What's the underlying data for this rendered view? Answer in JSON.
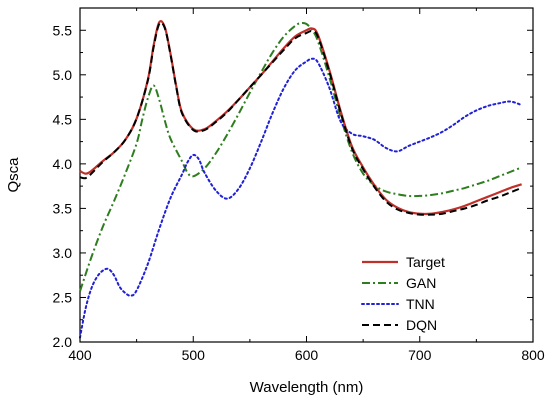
{
  "chart_data": {
    "type": "line",
    "title": "",
    "xlabel": "Wavelength (nm)",
    "ylabel": "Qsca",
    "xlim": [
      400,
      800
    ],
    "ylim": [
      2.0,
      5.75
    ],
    "xticks": [
      400,
      500,
      600,
      700,
      800
    ],
    "xtick_labels": [
      "400",
      "500",
      "600",
      "700",
      "800"
    ],
    "yticks": [
      2.0,
      2.5,
      3.0,
      3.5,
      4.0,
      4.5,
      5.0,
      5.5
    ],
    "ytick_labels": [
      "2.0",
      "2.5",
      "3.0",
      "3.5",
      "4.0",
      "4.5",
      "5.0",
      "5.5"
    ],
    "grid": false,
    "legend_position": "bottom-right",
    "series": [
      {
        "name": "Target",
        "color": "#c0302a",
        "dash": "solid",
        "x": [
          400,
          405,
          410,
          420,
          430,
          440,
          450,
          460,
          465,
          470,
          475,
          480,
          485,
          490,
          500,
          510,
          520,
          530,
          540,
          550,
          560,
          570,
          580,
          590,
          600,
          605,
          610,
          620,
          630,
          640,
          650,
          660,
          670,
          680,
          690,
          700,
          710,
          720,
          730,
          740,
          750,
          760,
          770,
          780,
          790
        ],
        "y": [
          3.92,
          3.89,
          3.92,
          4.03,
          4.13,
          4.27,
          4.51,
          4.95,
          5.33,
          5.59,
          5.53,
          5.23,
          4.87,
          4.58,
          4.39,
          4.39,
          4.48,
          4.59,
          4.72,
          4.86,
          5.0,
          5.15,
          5.3,
          5.43,
          5.5,
          5.52,
          5.45,
          5.06,
          4.6,
          4.2,
          3.96,
          3.76,
          3.6,
          3.51,
          3.46,
          3.44,
          3.44,
          3.46,
          3.49,
          3.53,
          3.58,
          3.63,
          3.68,
          3.73,
          3.77
        ]
      },
      {
        "name": "GAN",
        "color": "#2e7d1f",
        "dash": "dashdot",
        "x": [
          400,
          410,
          420,
          430,
          440,
          450,
          455,
          460,
          465,
          470,
          475,
          480,
          490,
          495,
          500,
          510,
          520,
          530,
          540,
          550,
          560,
          570,
          580,
          590,
          595,
          600,
          605,
          610,
          620,
          630,
          640,
          650,
          660,
          670,
          680,
          690,
          700,
          710,
          720,
          730,
          740,
          750,
          760,
          770,
          780,
          790
        ],
        "y": [
          2.57,
          2.95,
          3.29,
          3.58,
          3.89,
          4.23,
          4.5,
          4.74,
          4.88,
          4.72,
          4.48,
          4.28,
          4.03,
          3.9,
          3.86,
          3.95,
          4.12,
          4.33,
          4.56,
          4.8,
          5.03,
          5.25,
          5.43,
          5.55,
          5.58,
          5.57,
          5.5,
          5.38,
          4.98,
          4.53,
          4.14,
          3.89,
          3.76,
          3.69,
          3.66,
          3.64,
          3.64,
          3.65,
          3.67,
          3.7,
          3.73,
          3.77,
          3.81,
          3.86,
          3.91,
          3.96
        ]
      },
      {
        "name": "TNN",
        "color": "#2020d8",
        "dash": "dotted",
        "x": [
          400,
          405,
          410,
          415,
          420,
          425,
          430,
          435,
          440,
          445,
          450,
          460,
          470,
          480,
          490,
          495,
          500,
          505,
          510,
          520,
          530,
          540,
          550,
          560,
          570,
          580,
          590,
          600,
          605,
          610,
          620,
          630,
          640,
          650,
          660,
          670,
          680,
          690,
          700,
          710,
          720,
          730,
          740,
          750,
          760,
          770,
          780,
          790
        ],
        "y": [
          2.05,
          2.38,
          2.6,
          2.73,
          2.8,
          2.82,
          2.75,
          2.62,
          2.55,
          2.52,
          2.58,
          2.88,
          3.27,
          3.62,
          3.88,
          4.02,
          4.1,
          4.05,
          3.9,
          3.7,
          3.61,
          3.72,
          3.95,
          4.25,
          4.57,
          4.85,
          5.05,
          5.15,
          5.18,
          5.14,
          4.86,
          4.48,
          4.34,
          4.31,
          4.27,
          4.18,
          4.14,
          4.2,
          4.25,
          4.3,
          4.36,
          4.44,
          4.53,
          4.6,
          4.65,
          4.68,
          4.7,
          4.66
        ]
      },
      {
        "name": "DQN",
        "color": "#000000",
        "dash": "dashed",
        "x": [
          400,
          405,
          410,
          420,
          430,
          440,
          450,
          460,
          465,
          470,
          475,
          480,
          485,
          490,
          500,
          510,
          520,
          530,
          540,
          550,
          560,
          570,
          580,
          590,
          600,
          605,
          610,
          620,
          630,
          640,
          650,
          660,
          670,
          680,
          690,
          700,
          710,
          720,
          730,
          740,
          750,
          760,
          770,
          780,
          790
        ],
        "y": [
          3.85,
          3.84,
          3.89,
          4.02,
          4.13,
          4.27,
          4.51,
          4.94,
          5.31,
          5.57,
          5.52,
          5.22,
          4.86,
          4.57,
          4.38,
          4.38,
          4.47,
          4.58,
          4.72,
          4.86,
          5.0,
          5.14,
          5.28,
          5.41,
          5.47,
          5.49,
          5.43,
          5.04,
          4.58,
          4.18,
          3.94,
          3.74,
          3.58,
          3.49,
          3.45,
          3.43,
          3.43,
          3.44,
          3.47,
          3.5,
          3.54,
          3.59,
          3.63,
          3.68,
          3.73
        ]
      }
    ]
  }
}
